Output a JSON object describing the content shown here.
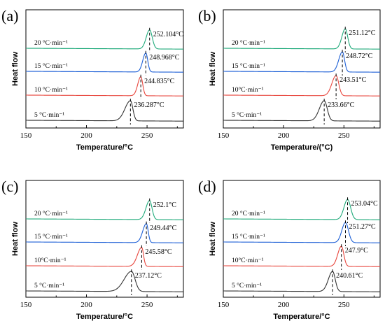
{
  "chart_data": [
    {
      "type": "line",
      "panel_label": "(a)",
      "xlabel": "Temperature/°C",
      "ylabel": "Heat flow",
      "xlim": [
        150,
        280
      ],
      "x_ticks": [
        150,
        200,
        250
      ],
      "series": [
        {
          "name": "5 °C·min⁻¹",
          "peak_x": 236.287,
          "peak_label": "236.287°C",
          "color": "#333333",
          "height": 0.9,
          "sigma_left": 4.5,
          "sigma_right": 2.0
        },
        {
          "name": "10 °C·min⁻¹",
          "peak_x": 244.835,
          "peak_label": "244.835°C",
          "color": "#e8453c",
          "height": 0.85,
          "sigma_left": 2.5,
          "sigma_right": 1.6
        },
        {
          "name": "15 °C·min⁻¹",
          "peak_x": 248.968,
          "peak_label": "248.968°C",
          "color": "#1c5fd6",
          "height": 0.85,
          "sigma_left": 2.5,
          "sigma_right": 1.6
        },
        {
          "name": "20 °C·min⁻¹",
          "peak_x": 252.104,
          "peak_label": "252.104°C",
          "color": "#1faa7a",
          "height": 0.85,
          "sigma_left": 2.8,
          "sigma_right": 2.2
        }
      ]
    },
    {
      "type": "line",
      "panel_label": "(b)",
      "xlabel": "Temperature/(°C)",
      "ylabel": "Heat flow",
      "xlim": [
        150,
        280
      ],
      "x_ticks": [
        150,
        200,
        250
      ],
      "series": [
        {
          "name": "5 °C·min⁻¹",
          "peak_x": 233.66,
          "peak_label": "233.66°C",
          "color": "#333333",
          "height": 0.9,
          "sigma_left": 4.0,
          "sigma_right": 2.5
        },
        {
          "name": "10°C·min⁻¹",
          "peak_x": 243.51,
          "peak_label": "243.51°C",
          "color": "#e8453c",
          "height": 0.9,
          "sigma_left": 3.5,
          "sigma_right": 2.2
        },
        {
          "name": "15 °C·min⁻¹",
          "peak_x": 248.72,
          "peak_label": "248.72°C",
          "color": "#1c5fd6",
          "height": 0.9,
          "sigma_left": 3.0,
          "sigma_right": 1.8
        },
        {
          "name": "20 °C·min⁻¹",
          "peak_x": 251.12,
          "peak_label": "251.12°C",
          "color": "#1faa7a",
          "height": 0.9,
          "sigma_left": 2.8,
          "sigma_right": 2.0
        }
      ]
    },
    {
      "type": "line",
      "panel_label": "(c)",
      "xlabel": "Temperature/°C",
      "ylabel": "Heat flow",
      "xlim": [
        150,
        280
      ],
      "x_ticks": [
        150,
        200,
        250
      ],
      "series": [
        {
          "name": "5 °C·min⁻¹",
          "peak_x": 237.12,
          "peak_label": "237.12°C",
          "color": "#333333",
          "height": 0.9,
          "sigma_left": 6.0,
          "sigma_right": 3.0
        },
        {
          "name": "10°C·min⁻¹",
          "peak_x": 245.58,
          "peak_label": "245.58°C",
          "color": "#e8453c",
          "height": 0.85,
          "sigma_left": 3.5,
          "sigma_right": 1.5
        },
        {
          "name": "15 °C·min⁻¹",
          "peak_x": 249.44,
          "peak_label": "249.44°C",
          "color": "#1c5fd6",
          "height": 0.85,
          "sigma_left": 3.0,
          "sigma_right": 1.5
        },
        {
          "name": "20 °C·min⁻¹",
          "peak_x": 252.1,
          "peak_label": "252.1°C",
          "color": "#1faa7a",
          "height": 0.85,
          "sigma_left": 3.0,
          "sigma_right": 2.0
        }
      ]
    },
    {
      "type": "line",
      "panel_label": "(d)",
      "xlabel": "Temperature/°C",
      "ylabel": "Heat flow",
      "xlim": [
        150,
        280
      ],
      "x_ticks": [
        150,
        200,
        250
      ],
      "series": [
        {
          "name": "5 °C·min⁻¹",
          "peak_x": 240.61,
          "peak_label": "240.61°C",
          "color": "#333333",
          "height": 0.9,
          "sigma_left": 3.5,
          "sigma_right": 2.2
        },
        {
          "name": "10°C·min⁻¹",
          "peak_x": 247.9,
          "peak_label": "247.9°C",
          "color": "#e8453c",
          "height": 0.9,
          "sigma_left": 3.0,
          "sigma_right": 2.0
        },
        {
          "name": "15 °C·min⁻¹",
          "peak_x": 251.27,
          "peak_label": "251.27°C",
          "color": "#1c5fd6",
          "height": 0.9,
          "sigma_left": 3.0,
          "sigma_right": 2.5
        },
        {
          "name": "20 °C·min⁻¹",
          "peak_x": 253.04,
          "peak_label": "253.04°C",
          "color": "#1faa7a",
          "height": 0.9,
          "sigma_left": 3.0,
          "sigma_right": 2.5
        }
      ]
    }
  ]
}
